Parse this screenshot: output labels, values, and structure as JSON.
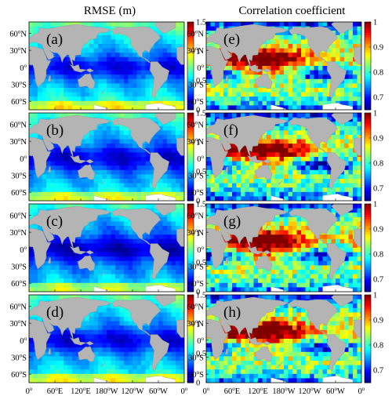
{
  "column_titles": {
    "left": "RMSE (m)",
    "right": "Correlation  coefficient"
  },
  "latitude_ticks": [
    {
      "deg": "60",
      "hemi": "N"
    },
    {
      "deg": "30",
      "hemi": "N"
    },
    {
      "deg": "0",
      "hemi": ""
    },
    {
      "deg": "30",
      "hemi": "S"
    },
    {
      "deg": "60",
      "hemi": "S"
    }
  ],
  "longitude_ticks": [
    {
      "deg": "0",
      "hemi": ""
    },
    {
      "deg": "60",
      "hemi": "E"
    },
    {
      "deg": "120",
      "hemi": "E"
    },
    {
      "deg": "180",
      "hemi": "W"
    },
    {
      "deg": "120",
      "hemi": "W"
    },
    {
      "deg": "60",
      "hemi": "W"
    },
    {
      "deg": "0",
      "hemi": ""
    }
  ],
  "colors": {
    "land": "#b4b4b4",
    "ice": "#ffffff",
    "colormap": [
      "#00008f",
      "#0000ff",
      "#0080ff",
      "#00ffff",
      "#80ff80",
      "#ffff00",
      "#ff8000",
      "#ff0000",
      "#800000"
    ]
  },
  "chart_data": [
    {
      "type": "heatmap",
      "panel": "(a)",
      "metric": "rmse",
      "colorbar": {
        "min": 0,
        "max": 1.5,
        "ticks": [
          "0",
          "0.5",
          "1",
          "1.5"
        ]
      },
      "field_level": 0.42
    },
    {
      "type": "heatmap",
      "panel": "(b)",
      "metric": "rmse",
      "colorbar": {
        "min": 0,
        "max": 1.5,
        "ticks": [
          "0",
          "0.5",
          "1",
          "1.5"
        ]
      },
      "field_level": 0.38
    },
    {
      "type": "heatmap",
      "panel": "(c)",
      "metric": "rmse",
      "colorbar": {
        "min": 0,
        "max": 1.5,
        "ticks": [
          "0",
          "0.5",
          "1",
          "1.5"
        ]
      },
      "field_level": 0.34
    },
    {
      "type": "heatmap",
      "panel": "(d)",
      "metric": "rmse",
      "colorbar": {
        "min": 0,
        "max": 1.5,
        "ticks": [
          "0",
          "0.5",
          "1",
          "1.5"
        ]
      },
      "field_level": 0.4
    },
    {
      "type": "heatmap",
      "panel": "(e)",
      "metric": "corr",
      "colorbar": {
        "min": 0.65,
        "max": 1,
        "ticks": [
          "0.7",
          "0.8",
          "0.9",
          "1"
        ]
      },
      "field_level": 0.86
    },
    {
      "type": "heatmap",
      "panel": "(f)",
      "metric": "corr",
      "colorbar": {
        "min": 0.65,
        "max": 1,
        "ticks": [
          "0.7",
          "0.8",
          "0.9",
          "1"
        ]
      },
      "field_level": 0.85
    },
    {
      "type": "heatmap",
      "panel": "(g)",
      "metric": "corr",
      "colorbar": {
        "min": 0.65,
        "max": 1,
        "ticks": [
          "0.7",
          "0.8",
          "0.9",
          "1"
        ]
      },
      "field_level": 0.86
    },
    {
      "type": "heatmap",
      "panel": "(h)",
      "metric": "corr",
      "colorbar": {
        "min": 0.65,
        "max": 1,
        "ticks": [
          "0.7",
          "0.8",
          "0.9",
          "1"
        ]
      },
      "field_level": 0.86
    }
  ]
}
